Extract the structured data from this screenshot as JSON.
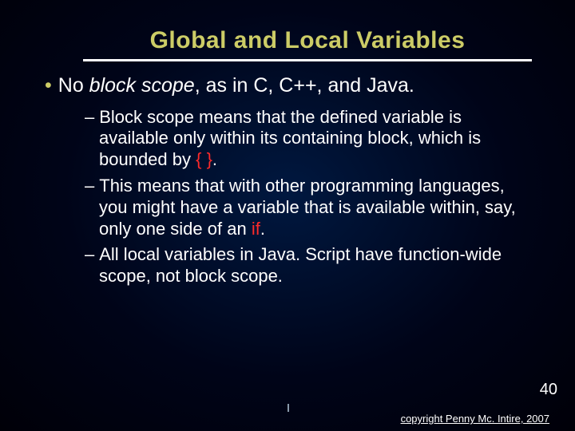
{
  "colors": {
    "background_center": "#001840",
    "background_edge": "#000008",
    "title_color": "#cccc66",
    "bullet_color": "#cccc66",
    "text_color": "#ffffff",
    "code_color": "#ff2a2a",
    "underline_color": "#ffffff"
  },
  "typography": {
    "title_fontsize": 30,
    "l1_fontsize": 25,
    "l2_fontsize": 22,
    "slidenum_fontsize": 20,
    "copyright_fontsize": 13,
    "font_family": "Verdana"
  },
  "title": "Global and Local Variables",
  "l1": {
    "bullet": "•",
    "pre": "No ",
    "em": "block scope",
    "post": ", as in C, C++, and Java."
  },
  "l2_1": {
    "dash": "–",
    "pre": "Block scope means that the defined variable is available only within its containing block, which is bounded by ",
    "code": "{ }",
    "post": "."
  },
  "l2_2": {
    "dash": "–",
    "pre": "This means that with other programming languages, you might have a variable that is available within, say, only one side of an ",
    "code": "if",
    "post": "."
  },
  "l2_3": {
    "dash": "–",
    "text": "All local variables in Java. Script have function-wide scope, not block scope."
  },
  "slide_number": "40",
  "copyright": "copyright Penny Mc. Intire, 2007"
}
